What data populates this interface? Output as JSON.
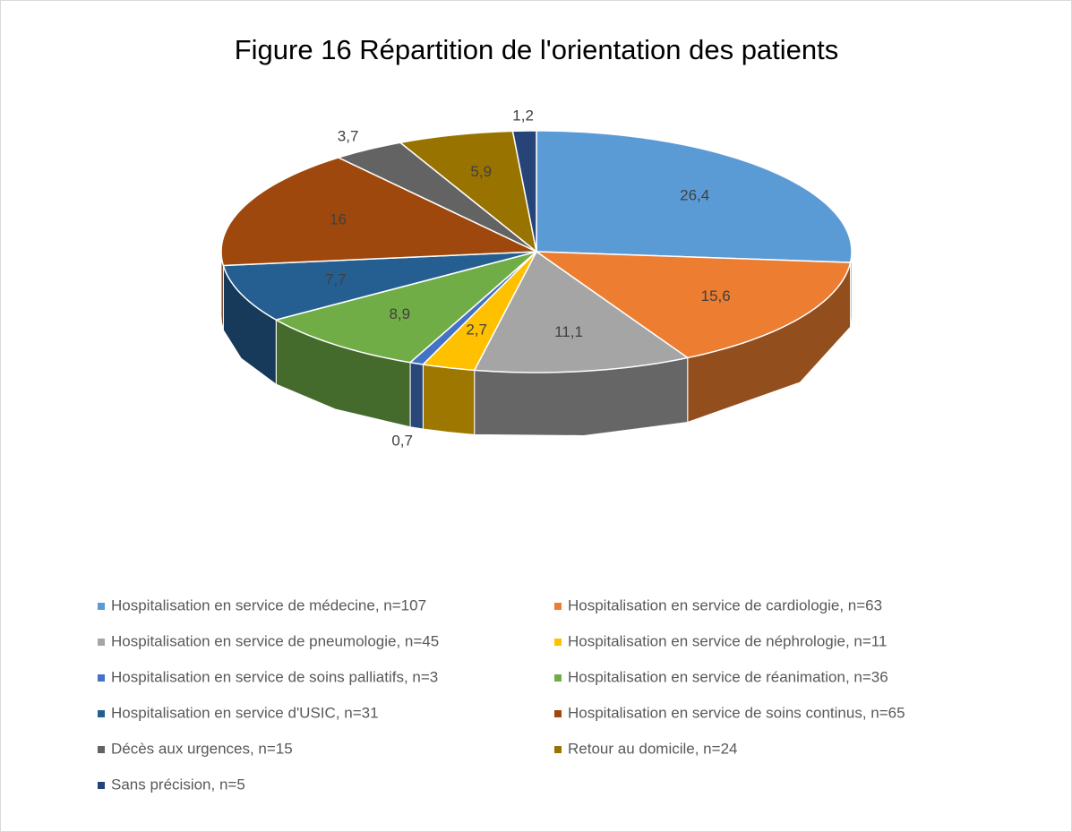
{
  "chart_data": {
    "type": "pie3d",
    "title": "Figure 16 Répartition de l'orientation des patients",
    "categories": [
      "Hospitalisation en service de médecine, n=107",
      "Hospitalisation en service de cardiologie, n=63",
      "Hospitalisation en service de pneumologie, n=45",
      "Hospitalisation en service de néphrologie, n=11",
      "Hospitalisation en service de soins palliatifs, n=3",
      "Hospitalisation en service de réanimation, n=36",
      "Hospitalisation en service d'USIC, n=31",
      "Hospitalisation en service de soins continus, n=65",
      "Décès aux urgences, n=15",
      "Retour au domicile, n=24",
      "Sans précision, n=5"
    ],
    "values": [
      26.4,
      15.6,
      11.1,
      2.7,
      0.7,
      8.9,
      7.7,
      16,
      3.7,
      5.9,
      1.2
    ],
    "value_labels": [
      "26,4",
      "15,6",
      "11,1",
      "2,7",
      "0,7",
      "8,9",
      "7,7",
      "16",
      "3,7",
      "5,9",
      "1,2"
    ],
    "colors": [
      "#5b9bd5",
      "#ed7d31",
      "#a5a5a5",
      "#ffc000",
      "#4472c4",
      "#70ad47",
      "#255e91",
      "#9e480e",
      "#636363",
      "#997300",
      "#264478"
    ],
    "legend": "bottom"
  }
}
